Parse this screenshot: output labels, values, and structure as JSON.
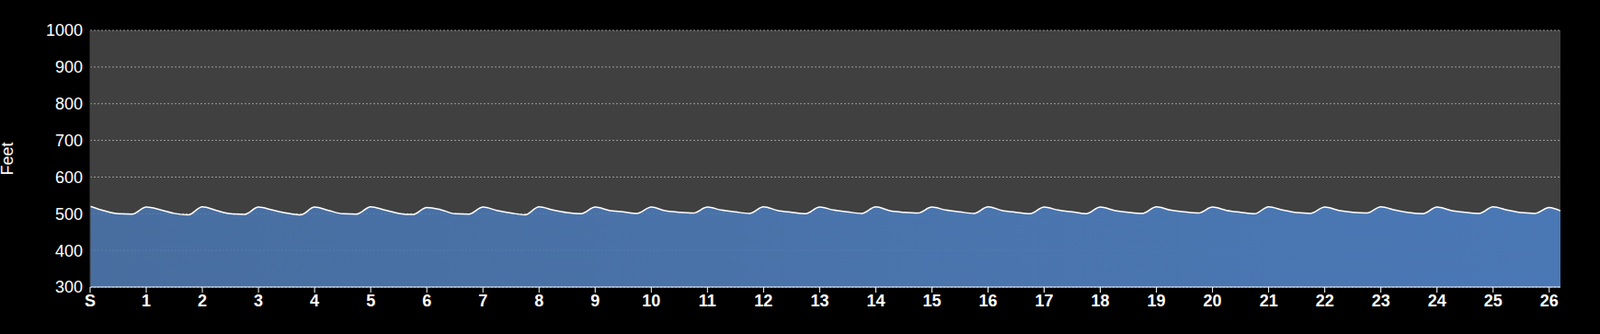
{
  "chart_data": {
    "type": "area",
    "y_label": "Feet",
    "color": "#4a78b5",
    "line_color": "#ffffff",
    "grid": true,
    "xlim": [
      0,
      26.2
    ],
    "ylim": [
      300,
      1000
    ],
    "yticks": [
      300,
      400,
      500,
      600,
      700,
      800,
      900,
      1000
    ],
    "xticks": [
      {
        "value": 0,
        "label": "S"
      },
      1,
      2,
      3,
      4,
      5,
      6,
      7,
      8,
      9,
      10,
      11,
      12,
      13,
      14,
      15,
      16,
      17,
      18,
      19,
      20,
      21,
      22,
      23,
      24,
      25,
      26
    ],
    "x": [
      0,
      0.25,
      0.5,
      0.75,
      1,
      1.25,
      1.5,
      1.75,
      2,
      2.25,
      2.5,
      2.75,
      3,
      3.25,
      3.5,
      3.75,
      4,
      4.25,
      4.5,
      4.75,
      5,
      5.25,
      5.5,
      5.75,
      6,
      6.25,
      6.5,
      6.75,
      7,
      7.25,
      7.5,
      7.75,
      8,
      8.25,
      8.5,
      8.75,
      9,
      9.25,
      9.5,
      9.75,
      10,
      10.25,
      10.5,
      10.75,
      11,
      11.25,
      11.5,
      11.75,
      12,
      12.25,
      12.5,
      12.75,
      13,
      13.25,
      13.5,
      13.75,
      14,
      14.25,
      14.5,
      14.75,
      15,
      15.25,
      15.5,
      15.75,
      16,
      16.25,
      16.5,
      16.75,
      17,
      17.25,
      17.5,
      17.75,
      18,
      18.25,
      18.5,
      18.75,
      19,
      19.25,
      19.5,
      19.75,
      20,
      20.25,
      20.5,
      20.75,
      21,
      21.25,
      21.5,
      21.75,
      22,
      22.25,
      22.5,
      22.75,
      23,
      23.25,
      23.5,
      23.75,
      24,
      24.25,
      24.5,
      24.75,
      25,
      25.25,
      25.5,
      25.75,
      26,
      26.2
    ],
    "values": [
      520,
      508,
      500,
      499,
      518,
      511,
      501,
      497,
      519,
      509,
      500,
      498,
      518,
      510,
      502,
      497,
      518,
      509,
      500,
      499,
      519,
      510,
      501,
      498,
      517,
      511,
      500,
      499,
      518,
      509,
      502,
      497,
      519,
      510,
      503,
      500,
      518,
      509,
      505,
      501,
      518,
      508,
      504,
      502,
      518,
      510,
      505,
      501,
      519,
      509,
      504,
      500,
      518,
      510,
      505,
      501,
      519,
      508,
      504,
      502,
      518,
      510,
      505,
      501,
      519,
      509,
      504,
      500,
      518,
      510,
      505,
      500,
      518,
      509,
      504,
      501,
      519,
      510,
      505,
      502,
      518,
      509,
      504,
      500,
      519,
      510,
      503,
      501,
      518,
      509,
      504,
      502,
      519,
      510,
      503,
      500,
      518,
      509,
      504,
      501,
      519,
      510,
      503,
      501,
      517,
      508
    ]
  }
}
